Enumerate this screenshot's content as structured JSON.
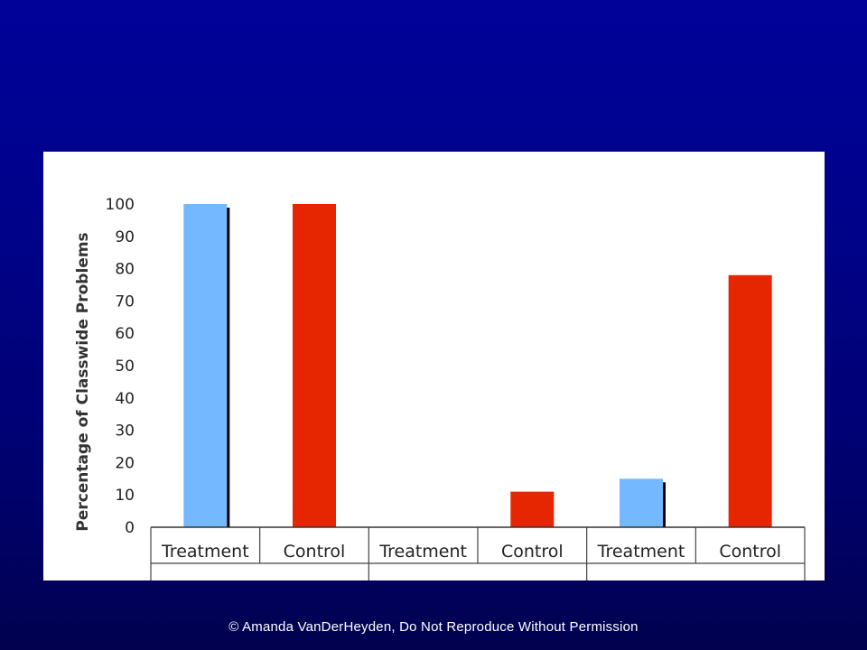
{
  "footer": {
    "copyright": "© Amanda VanDerHeyden, Do Not Reproduce Without Permission"
  },
  "chart_data": {
    "type": "bar",
    "title": "",
    "ylabel": "Percentage of Classwide Problems",
    "xlabel": "",
    "ylim": [
      0,
      100
    ],
    "yticks": [
      0,
      10,
      20,
      30,
      40,
      50,
      60,
      70,
      80,
      90,
      100
    ],
    "categories": [
      "Treatment",
      "Control",
      "Treatment",
      "Control",
      "Treatment",
      "Control"
    ],
    "groups": [
      {
        "label": "",
        "span": [
          0,
          1
        ]
      },
      {
        "label": "",
        "span": [
          2,
          3
        ]
      },
      {
        "label": "",
        "span": [
          4,
          5
        ]
      }
    ],
    "values": [
      100,
      100,
      0,
      11,
      15,
      78
    ],
    "colors": {
      "Treatment": "#74b9ff",
      "Control": "#e62600",
      "shadow": "#000000"
    },
    "grid": false,
    "legend": "none"
  }
}
